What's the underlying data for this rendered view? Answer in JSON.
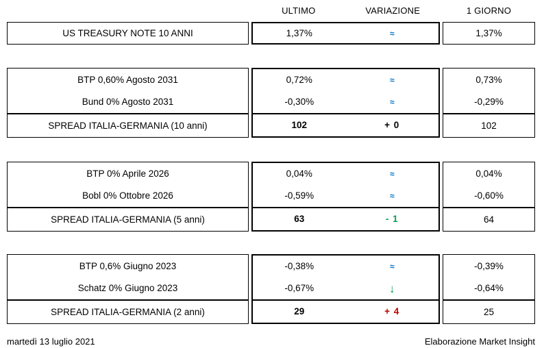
{
  "table": {
    "columns": {
      "ultimo": "ULTIMO",
      "variazione": "VARIAZIONE",
      "giorno": "1 GIORNO"
    },
    "blocks": [
      {
        "rows": [
          {
            "label": "US TREASURY NOTE 10 ANNI",
            "ultimo": "1,37%",
            "variazione": "≈",
            "var_kind": "approx",
            "var_color": "flat",
            "giorno": "1,37%",
            "is_spread": false
          }
        ]
      },
      {
        "rows": [
          {
            "label": "BTP 0,60% Agosto 2031",
            "ultimo": "0,72%",
            "variazione": "≈",
            "var_kind": "approx",
            "var_color": "flat",
            "giorno": "0,73%",
            "is_spread": false
          },
          {
            "label": "Bund 0% Agosto 2031",
            "ultimo": "-0,30%",
            "variazione": "≈",
            "var_kind": "approx",
            "var_color": "flat",
            "giorno": "-0,29%",
            "is_spread": false
          },
          {
            "label": "SPREAD ITALIA-GERMANIA (10 anni)",
            "ultimo": "102",
            "variazione": "+ 0",
            "var_kind": "delta",
            "var_color": "neutral",
            "giorno": "102",
            "is_spread": true
          }
        ]
      },
      {
        "rows": [
          {
            "label": "BTP 0% Aprile 2026",
            "ultimo": "0,04%",
            "variazione": "≈",
            "var_kind": "approx",
            "var_color": "flat",
            "giorno": "0,04%",
            "is_spread": false
          },
          {
            "label": "Bobl 0% Ottobre 2026",
            "ultimo": "-0,59%",
            "variazione": "≈",
            "var_kind": "approx",
            "var_color": "flat",
            "giorno": "-0,60%",
            "is_spread": false
          },
          {
            "label": "SPREAD ITALIA-GERMANIA (5 anni)",
            "ultimo": "63",
            "variazione": "- 1",
            "var_kind": "delta",
            "var_color": "down",
            "giorno": "64",
            "is_spread": true
          }
        ]
      },
      {
        "rows": [
          {
            "label": "BTP 0,6% Giugno 2023",
            "ultimo": "-0,38%",
            "variazione": "≈",
            "var_kind": "approx",
            "var_color": "flat",
            "giorno": "-0,39%",
            "is_spread": false
          },
          {
            "label": "Schatz 0% Giugno 2023",
            "ultimo": "-0,67%",
            "variazione": "↓",
            "var_kind": "arrow-down",
            "var_color": "down",
            "giorno": "-0,64%",
            "is_spread": false
          },
          {
            "label": "SPREAD ITALIA-GERMANIA (2 anni)",
            "ultimo": "29",
            "variazione": "+ 4",
            "var_kind": "delta",
            "var_color": "up",
            "giorno": "25",
            "is_spread": true
          }
        ]
      }
    ]
  },
  "footer": {
    "date": "martedì 13 luglio 2021",
    "credit": "Elaborazione Market Insight"
  },
  "colors": {
    "flat": "#0070C0",
    "down": "#00A050",
    "up": "#C00000",
    "neutral": "#000000"
  }
}
